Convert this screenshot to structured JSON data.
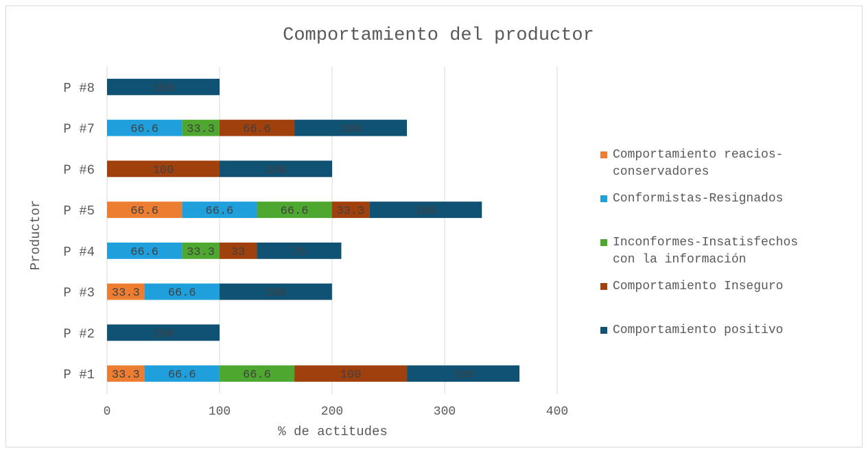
{
  "chart_data": {
    "type": "bar",
    "orientation": "horizontal",
    "stacked": true,
    "title": "Comportamiento del productor",
    "xlabel": "% de actitudes",
    "ylabel": "Productor",
    "xlim": [
      0,
      400
    ],
    "xticks": [
      0,
      100,
      200,
      300,
      400
    ],
    "xtick_labels": [
      "0",
      "100",
      "200",
      "300",
      "400"
    ],
    "grid": "vertical",
    "legend_position": "right",
    "categories": [
      "P #1",
      "P #2",
      "P #3",
      "P #4",
      "P #5",
      "P #6",
      "P #7",
      "P #8"
    ],
    "series": [
      {
        "name": "Comportamiento reacios-conservadores",
        "color": "#ed7d31",
        "values": [
          33.3,
          0,
          33.3,
          0,
          66.6,
          0,
          0,
          0
        ],
        "labels": [
          "33.3",
          "",
          "33.3",
          "",
          "66.6",
          "",
          "",
          ""
        ]
      },
      {
        "name": "Conformistas-Resignados",
        "color": "#1fa0dc",
        "values": [
          66.6,
          0,
          66.6,
          66.6,
          66.6,
          0,
          66.6,
          0
        ],
        "labels": [
          "66.6",
          "",
          "66.6",
          "66.6",
          "66.6",
          "",
          "66.6",
          ""
        ]
      },
      {
        "name": "Inconformes-Insatisfechos con la información",
        "color": "#4ea72e",
        "values": [
          66.6,
          0,
          0,
          33.3,
          66.6,
          0,
          33.3,
          0
        ],
        "labels": [
          "66.6",
          "",
          "",
          "33.3",
          "66.6",
          "",
          "33.3",
          ""
        ]
      },
      {
        "name": "Comportamiento Inseguro",
        "color": "#a0400c",
        "values": [
          100,
          0,
          0,
          33.3,
          33.3,
          100,
          66.6,
          0
        ],
        "labels": [
          "100",
          "",
          "",
          "33",
          "33.3",
          "100",
          "66.6",
          ""
        ]
      },
      {
        "name": "Comportamiento positivo",
        "color": "#0f5274",
        "values": [
          100,
          100,
          100,
          75,
          100,
          100,
          100,
          100
        ],
        "labels": [
          "100",
          "100",
          "100",
          "75",
          "100",
          "100",
          "100",
          "100"
        ]
      }
    ],
    "legend": [
      {
        "lines": [
          "Comportamiento reacios-",
          "conservadores"
        ],
        "color": "#ed7d31"
      },
      {
        "lines": [
          "Conformistas-Resignados"
        ],
        "color": "#1fa0dc"
      },
      {
        "lines": [
          "Inconformes-Insatisfechos",
          "con la información"
        ],
        "color": "#4ea72e"
      },
      {
        "lines": [
          "Comportamiento Inseguro"
        ],
        "color": "#a0400c"
      },
      {
        "lines": [
          "Comportamiento positivo"
        ],
        "color": "#0f5274"
      }
    ],
    "colors": {
      "text": "#595959",
      "title": "#595959",
      "gridline": "#d9d9d9",
      "axis": "#bfbfbf",
      "data_label": "#404040"
    }
  }
}
